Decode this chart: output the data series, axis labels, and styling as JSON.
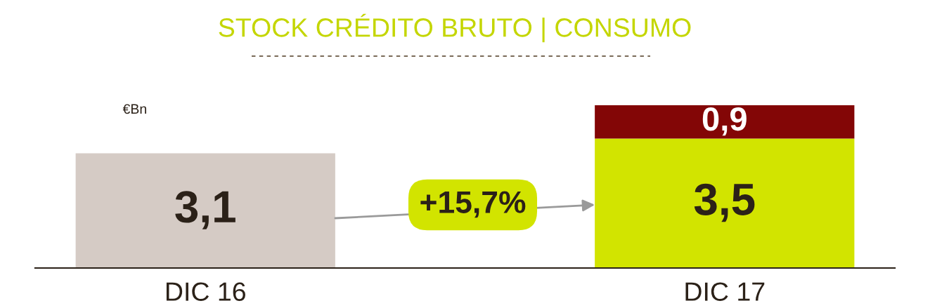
{
  "chart_data": {
    "type": "bar",
    "title": "STOCK CRÉDITO BRUTO | CONSUMO",
    "ylabel": "€Bn",
    "categories": [
      "DIC 16",
      "DIC 17"
    ],
    "stacked": true,
    "series": [
      {
        "colors": [
          "#d5cbc5",
          "#d2e400"
        ],
        "values": [
          3.1,
          3.5
        ],
        "value_labels": [
          "3,1",
          "3,5"
        ]
      },
      {
        "color": "#830606",
        "values": [
          null,
          0.9
        ],
        "value_labels": [
          null,
          "0,9"
        ]
      }
    ],
    "annotations": [
      "+15,7%"
    ],
    "grid": false,
    "legend": false
  }
}
